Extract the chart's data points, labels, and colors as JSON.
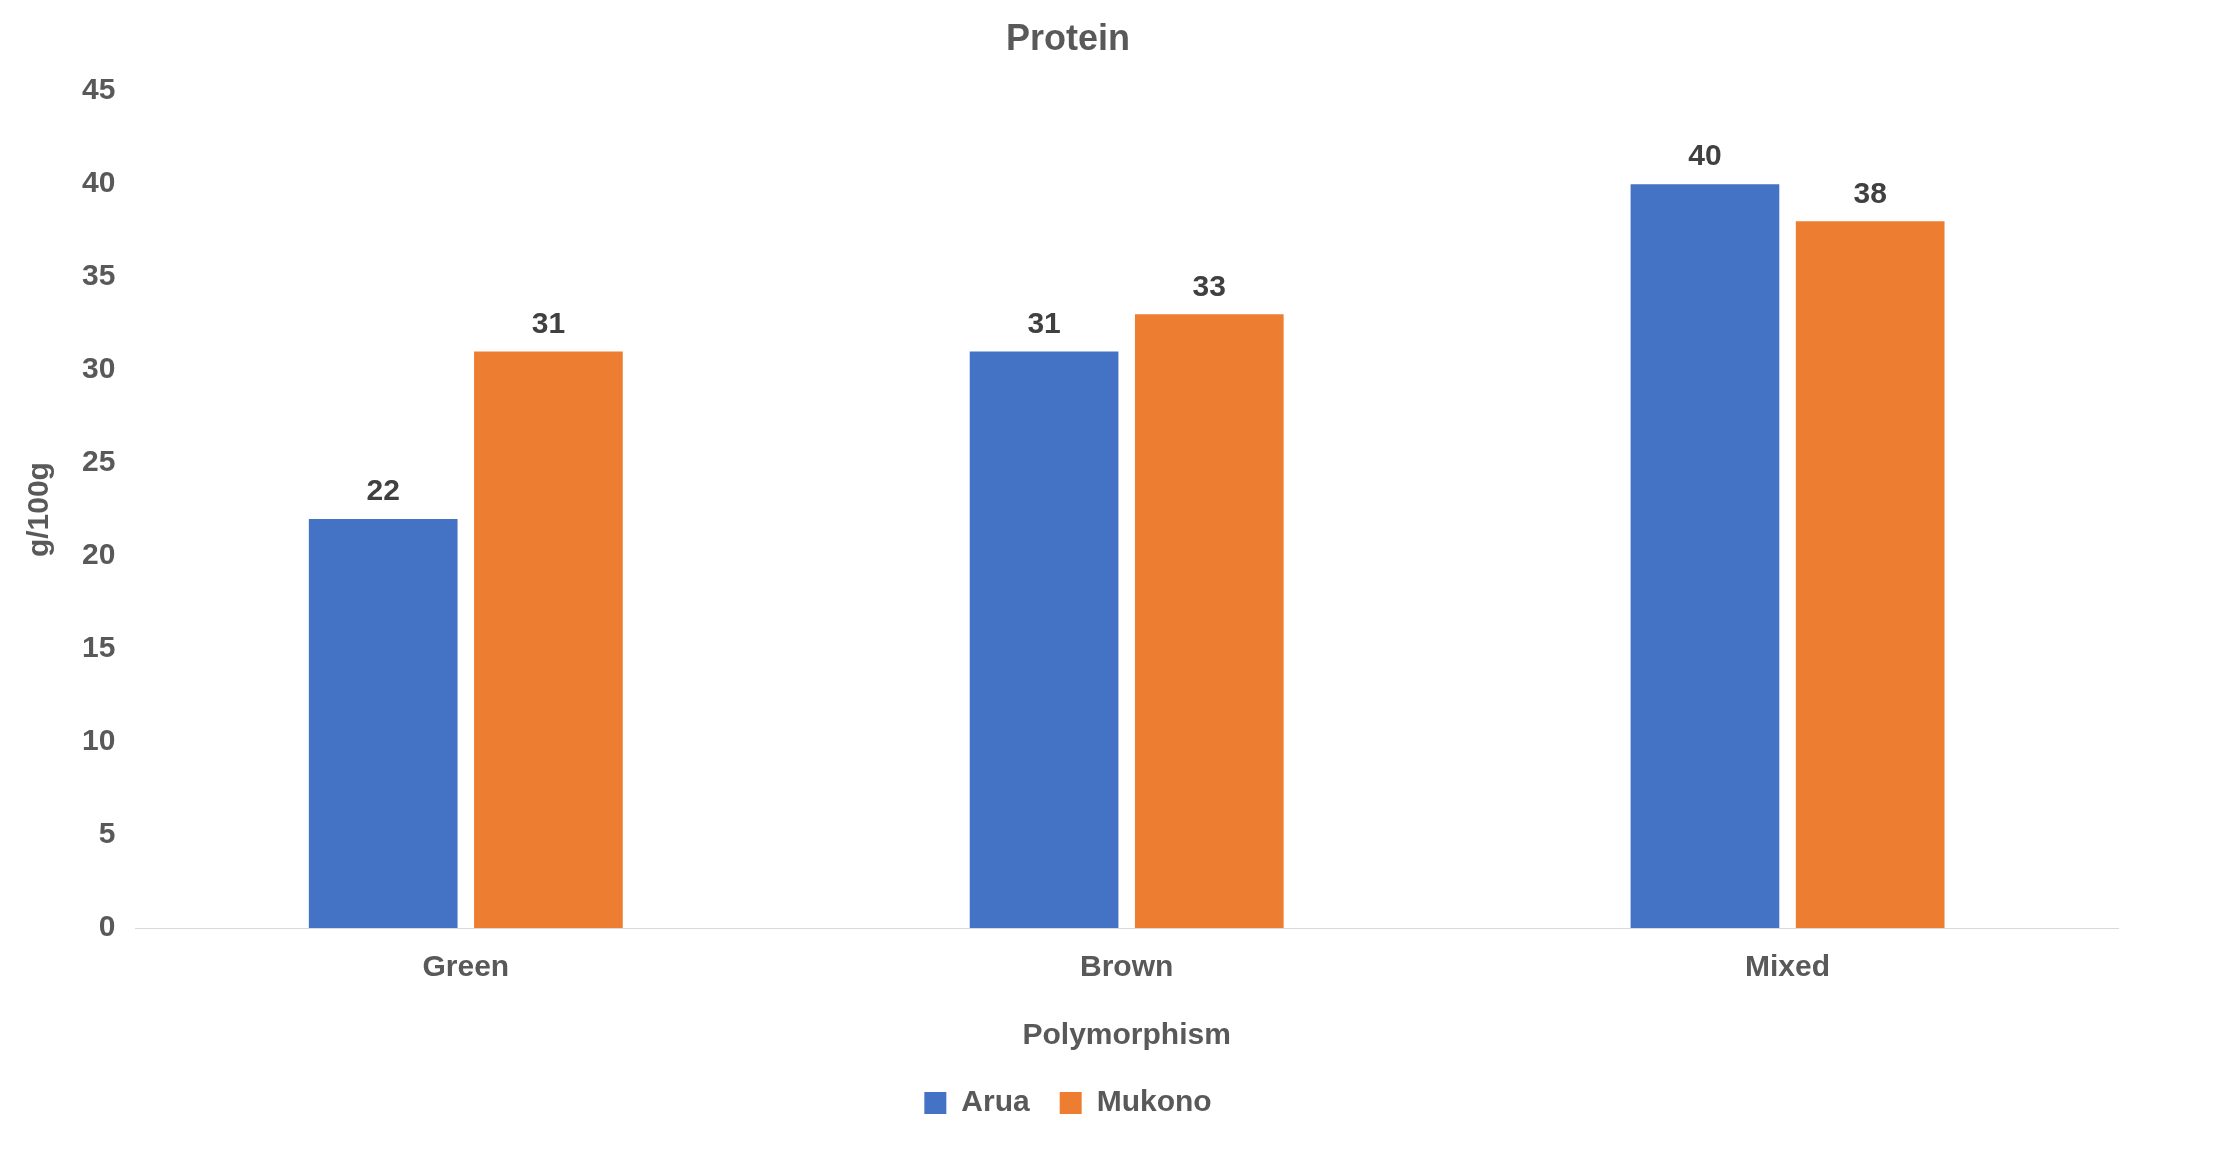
{
  "chart_data": {
    "type": "bar",
    "title": "Protein",
    "xlabel": "Polymorphism",
    "ylabel": "g/100g",
    "categories": [
      "Green",
      "Brown",
      "Mixed"
    ],
    "series": [
      {
        "name": "Arua",
        "color": "#4472c4",
        "values": [
          22,
          31,
          40
        ]
      },
      {
        "name": "Mukono",
        "color": "#ed7d31",
        "values": [
          31,
          33,
          38
        ]
      }
    ],
    "ylim": [
      0,
      45
    ],
    "yticks": [
      0,
      5,
      10,
      15,
      20,
      25,
      30,
      35,
      40,
      45
    ],
    "grid": false,
    "legend": "bottom",
    "data_labels": true
  }
}
